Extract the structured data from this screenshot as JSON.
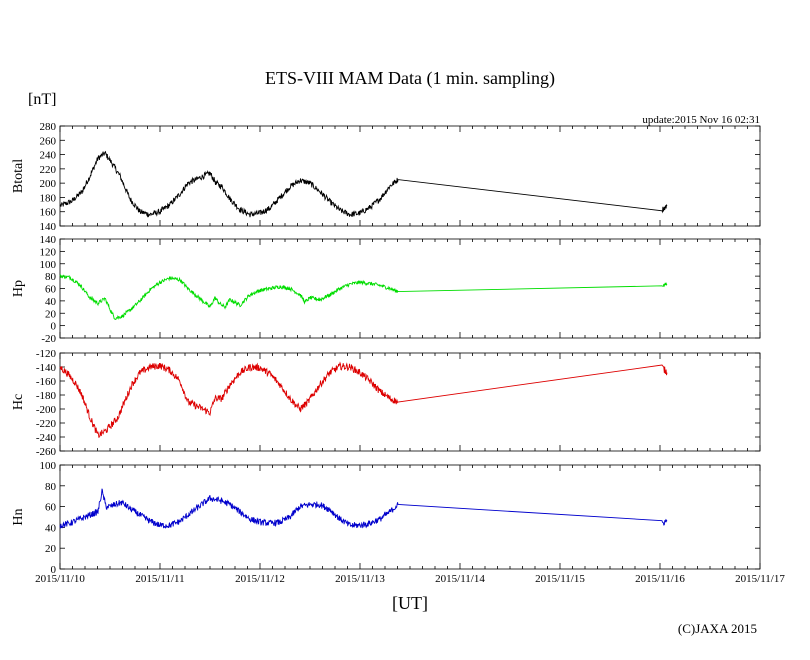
{
  "chart_data": {
    "type": "line",
    "title": "ETS-VIII MAM Data (1 min. sampling)",
    "unit_label": "[nT]",
    "update_label": "update:2015 Nov 16 02:31",
    "xlabel": "[UT]",
    "copyright": "(C)JAXA 2015",
    "x_range": [
      0,
      7
    ],
    "x_ticks": [
      {
        "value": 0,
        "label": "2015/11/10"
      },
      {
        "value": 1,
        "label": "2015/11/11"
      },
      {
        "value": 2,
        "label": "2015/11/12"
      },
      {
        "value": 3,
        "label": "2015/11/13"
      },
      {
        "value": 4,
        "label": "2015/11/14"
      },
      {
        "value": 5,
        "label": "2015/11/15"
      },
      {
        "value": 6,
        "label": "2015/11/16"
      },
      {
        "value": 7,
        "label": "2015/11/17"
      }
    ],
    "panels": [
      {
        "name": "Btotal",
        "ylabel": "Btotal",
        "color": "#000000",
        "noise": 4,
        "ylim": [
          140,
          280
        ],
        "yticks": [
          140,
          160,
          180,
          200,
          220,
          240,
          260,
          280
        ],
        "points": [
          [
            0,
            168
          ],
          [
            0.12,
            175
          ],
          [
            0.22,
            188
          ],
          [
            0.3,
            210
          ],
          [
            0.38,
            235
          ],
          [
            0.45,
            242
          ],
          [
            0.52,
            228
          ],
          [
            0.6,
            210
          ],
          [
            0.7,
            178
          ],
          [
            0.8,
            160
          ],
          [
            0.9,
            156
          ],
          [
            1.0,
            160
          ],
          [
            1.1,
            170
          ],
          [
            1.2,
            185
          ],
          [
            1.28,
            200
          ],
          [
            1.5,
            214
          ],
          [
            1.56,
            200
          ],
          [
            1.62,
            195
          ],
          [
            1.7,
            178
          ],
          [
            1.8,
            163
          ],
          [
            1.9,
            156
          ],
          [
            2.0,
            158
          ],
          [
            2.1,
            165
          ],
          [
            2.2,
            180
          ],
          [
            2.3,
            195
          ],
          [
            2.4,
            204
          ],
          [
            2.5,
            200
          ],
          [
            2.6,
            188
          ],
          [
            2.7,
            174
          ],
          [
            2.8,
            162
          ],
          [
            2.9,
            156
          ],
          [
            3.0,
            158
          ],
          [
            3.1,
            166
          ],
          [
            3.2,
            178
          ],
          [
            3.3,
            196
          ],
          [
            3.38,
            205
          ],
          [
            6.02,
            163
          ],
          [
            6.07,
            168
          ]
        ]
      },
      {
        "name": "Hp",
        "ylabel": "Hp",
        "color": "#00dd00",
        "noise": 3,
        "ylim": [
          -20,
          140
        ],
        "yticks": [
          -20,
          0,
          20,
          40,
          60,
          80,
          100,
          120,
          140
        ],
        "points": [
          [
            0,
            80
          ],
          [
            0.1,
            78
          ],
          [
            0.2,
            66
          ],
          [
            0.3,
            45
          ],
          [
            0.38,
            36
          ],
          [
            0.45,
            44
          ],
          [
            0.52,
            20
          ],
          [
            0.55,
            12
          ],
          [
            0.62,
            15
          ],
          [
            0.7,
            25
          ],
          [
            0.8,
            40
          ],
          [
            0.9,
            58
          ],
          [
            1.0,
            70
          ],
          [
            1.1,
            77
          ],
          [
            1.2,
            74
          ],
          [
            1.28,
            60
          ],
          [
            1.5,
            30
          ],
          [
            1.55,
            45
          ],
          [
            1.6,
            35
          ],
          [
            1.65,
            30
          ],
          [
            1.7,
            42
          ],
          [
            1.8,
            33
          ],
          [
            1.9,
            50
          ],
          [
            2.0,
            57
          ],
          [
            2.1,
            60
          ],
          [
            2.2,
            63
          ],
          [
            2.3,
            60
          ],
          [
            2.4,
            50
          ],
          [
            2.45,
            38
          ],
          [
            2.5,
            45
          ],
          [
            2.6,
            42
          ],
          [
            2.7,
            50
          ],
          [
            2.8,
            60
          ],
          [
            2.9,
            67
          ],
          [
            3.0,
            70
          ],
          [
            3.1,
            68
          ],
          [
            3.2,
            65
          ],
          [
            3.3,
            60
          ],
          [
            3.38,
            55
          ],
          [
            6.02,
            65
          ],
          [
            6.07,
            67
          ]
        ]
      },
      {
        "name": "Hc",
        "ylabel": "Hc",
        "color": "#dd0000",
        "noise": 5,
        "ylim": [
          -260,
          -120
        ],
        "yticks": [
          -260,
          -240,
          -220,
          -200,
          -180,
          -160,
          -140,
          -120
        ],
        "points": [
          [
            0,
            -140
          ],
          [
            0.08,
            -150
          ],
          [
            0.15,
            -162
          ],
          [
            0.22,
            -180
          ],
          [
            0.3,
            -212
          ],
          [
            0.38,
            -238
          ],
          [
            0.45,
            -232
          ],
          [
            0.52,
            -222
          ],
          [
            0.58,
            -212
          ],
          [
            0.65,
            -188
          ],
          [
            0.72,
            -165
          ],
          [
            0.8,
            -148
          ],
          [
            0.9,
            -140
          ],
          [
            1.0,
            -138
          ],
          [
            1.1,
            -145
          ],
          [
            1.2,
            -160
          ],
          [
            1.28,
            -190
          ],
          [
            1.5,
            -205
          ],
          [
            1.55,
            -185
          ],
          [
            1.62,
            -185
          ],
          [
            1.7,
            -165
          ],
          [
            1.8,
            -148
          ],
          [
            1.9,
            -140
          ],
          [
            2.0,
            -141
          ],
          [
            2.1,
            -150
          ],
          [
            2.2,
            -165
          ],
          [
            2.3,
            -185
          ],
          [
            2.4,
            -200
          ],
          [
            2.48,
            -190
          ],
          [
            2.6,
            -165
          ],
          [
            2.7,
            -148
          ],
          [
            2.8,
            -139
          ],
          [
            2.9,
            -140
          ],
          [
            3.0,
            -148
          ],
          [
            3.1,
            -160
          ],
          [
            3.2,
            -175
          ],
          [
            3.3,
            -185
          ],
          [
            3.38,
            -190
          ],
          [
            6.02,
            -140
          ],
          [
            6.07,
            -148
          ]
        ]
      },
      {
        "name": "Hn",
        "ylabel": "Hn",
        "color": "#0000cc",
        "noise": 3,
        "ylim": [
          0,
          100
        ],
        "yticks": [
          0,
          20,
          40,
          60,
          80,
          100
        ],
        "points": [
          [
            0,
            42
          ],
          [
            0.1,
            44
          ],
          [
            0.2,
            48
          ],
          [
            0.3,
            52
          ],
          [
            0.38,
            55
          ],
          [
            0.42,
            75
          ],
          [
            0.46,
            60
          ],
          [
            0.5,
            60
          ],
          [
            0.55,
            62
          ],
          [
            0.62,
            64
          ],
          [
            0.7,
            58
          ],
          [
            0.8,
            52
          ],
          [
            0.9,
            46
          ],
          [
            1.0,
            42
          ],
          [
            1.1,
            42
          ],
          [
            1.2,
            46
          ],
          [
            1.28,
            52
          ],
          [
            1.5,
            68
          ],
          [
            1.6,
            66
          ],
          [
            1.7,
            62
          ],
          [
            1.8,
            55
          ],
          [
            1.9,
            48
          ],
          [
            2.0,
            45
          ],
          [
            2.1,
            44
          ],
          [
            2.2,
            45
          ],
          [
            2.3,
            50
          ],
          [
            2.4,
            60
          ],
          [
            2.5,
            62
          ],
          [
            2.6,
            62
          ],
          [
            2.7,
            57
          ],
          [
            2.8,
            48
          ],
          [
            2.9,
            42
          ],
          [
            3.0,
            42
          ],
          [
            3.1,
            44
          ],
          [
            3.2,
            48
          ],
          [
            3.3,
            55
          ],
          [
            3.38,
            62
          ],
          [
            6.02,
            44
          ],
          [
            6.07,
            46
          ]
        ]
      }
    ]
  }
}
